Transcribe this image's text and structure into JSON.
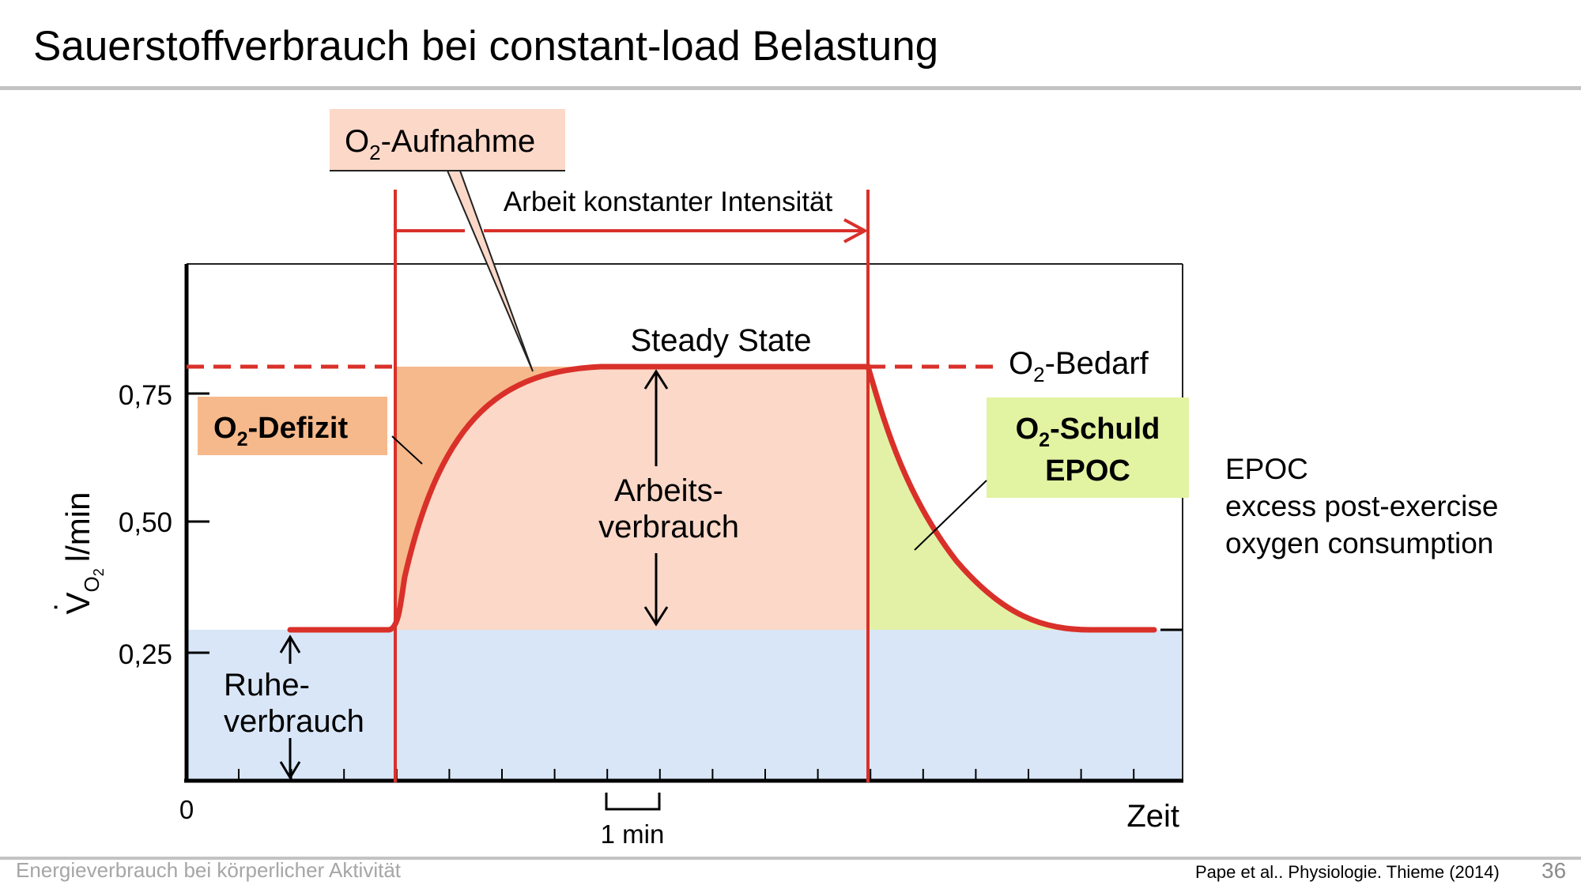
{
  "slide": {
    "title": "Sauerstoffverbrauch bei constant-load Belastung",
    "footer_left": "Energieverbrauch bei körperlicher Aktivität",
    "source": "Pape et al.. Physiologie. Thieme (2014)",
    "page_number": "36"
  },
  "diagram": {
    "labels": {
      "o2_aufnahme": {
        "base": "O",
        "sub": "2",
        "rest": "-Aufnahme"
      },
      "arbeit": "Arbeit konstanter Intensität",
      "steady_state": "Steady State",
      "o2_bedarf": {
        "base": "O",
        "sub": "2",
        "rest": "-Bedarf"
      },
      "o2_defizit": {
        "base": "O",
        "sub": "2",
        "rest": "-Defizit"
      },
      "o2_schuld": {
        "base": "O",
        "sub": "2",
        "rest": "-Schuld"
      },
      "epoc": "EPOC",
      "arbeitsverbrauch": [
        "Arbeits-",
        "verbrauch"
      ],
      "ruheverbrauch": [
        "Ruhe-",
        "verbrauch"
      ],
      "x_axis_label": "Zeit",
      "y_axis_label": {
        "v": "V",
        "sub": "O",
        "sub2": "2",
        "unit": "l/min"
      },
      "scale_bar": "1 min",
      "origin": "0"
    },
    "y_ticks": [
      "0,75",
      "0,50",
      "0,25"
    ],
    "colors": {
      "curve": "#d9302a",
      "defizit_fill": "#f6b98b",
      "arbeit_fill": "#fbd8c8",
      "ruhe_fill": "#d9e6f7",
      "schuld_fill": "#e3f1a6",
      "defizit_label_bg": "#f6b98b",
      "schuld_label_bg": "#e2f3a2",
      "aufnahme_label_bg": "#fbd8c8"
    }
  },
  "epoc_note": {
    "lines": [
      "EPOC",
      "excess post-exercise",
      "oxygen consumption"
    ]
  }
}
